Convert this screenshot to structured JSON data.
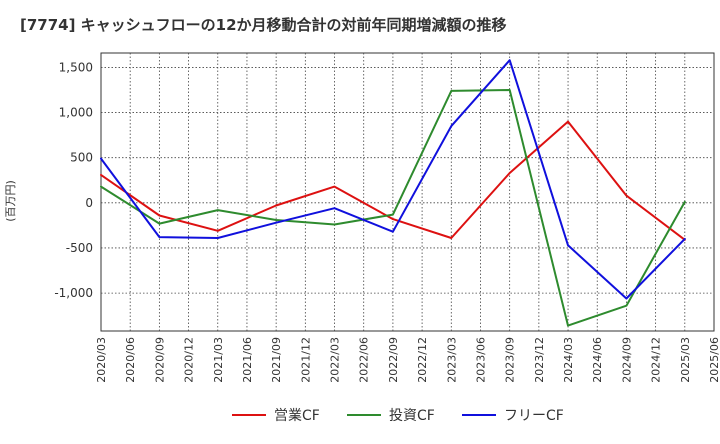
{
  "chart_data": {
    "type": "line",
    "title": "[7774]  キャッシュフローの12か月移動合計の対前年同期増減額の推移",
    "ylabel": "(百万円)",
    "xlabel": "",
    "ylim": [
      -1420,
      1660
    ],
    "yticks": [
      -1000,
      -500,
      0,
      500,
      1000,
      1500
    ],
    "ytick_labels": [
      "-1,000",
      "-500",
      "0",
      "500",
      "1,000",
      "1,500"
    ],
    "categories": [
      "2020/03",
      "2020/06",
      "2020/09",
      "2020/12",
      "2021/03",
      "2021/06",
      "2021/09",
      "2021/12",
      "2022/03",
      "2022/06",
      "2022/09",
      "2022/12",
      "2023/03",
      "2023/06",
      "2023/09",
      "2023/12",
      "2024/03",
      "2024/06",
      "2024/09",
      "2024/12",
      "2025/03",
      "2025/06"
    ],
    "grid": true,
    "legend_position": "bottom",
    "series": [
      {
        "name": "営業CF",
        "color": "#dd1111",
        "values": [
          310,
          null,
          -140,
          null,
          -310,
          null,
          -30,
          null,
          180,
          null,
          -180,
          null,
          -390,
          null,
          330,
          null,
          900,
          null,
          80,
          null,
          -410,
          null
        ]
      },
      {
        "name": "投資CF",
        "color": "#2e8b2e",
        "values": [
          180,
          null,
          -230,
          null,
          -80,
          null,
          -190,
          null,
          -240,
          null,
          -130,
          null,
          1240,
          null,
          1250,
          null,
          -1360,
          null,
          -1140,
          null,
          10,
          null
        ]
      },
      {
        "name": "フリーCF",
        "color": "#1010dd",
        "values": [
          490,
          null,
          -380,
          null,
          -390,
          null,
          -220,
          null,
          -60,
          null,
          -320,
          null,
          850,
          null,
          1580,
          null,
          -470,
          null,
          -1060,
          null,
          -400,
          null
        ]
      }
    ]
  }
}
